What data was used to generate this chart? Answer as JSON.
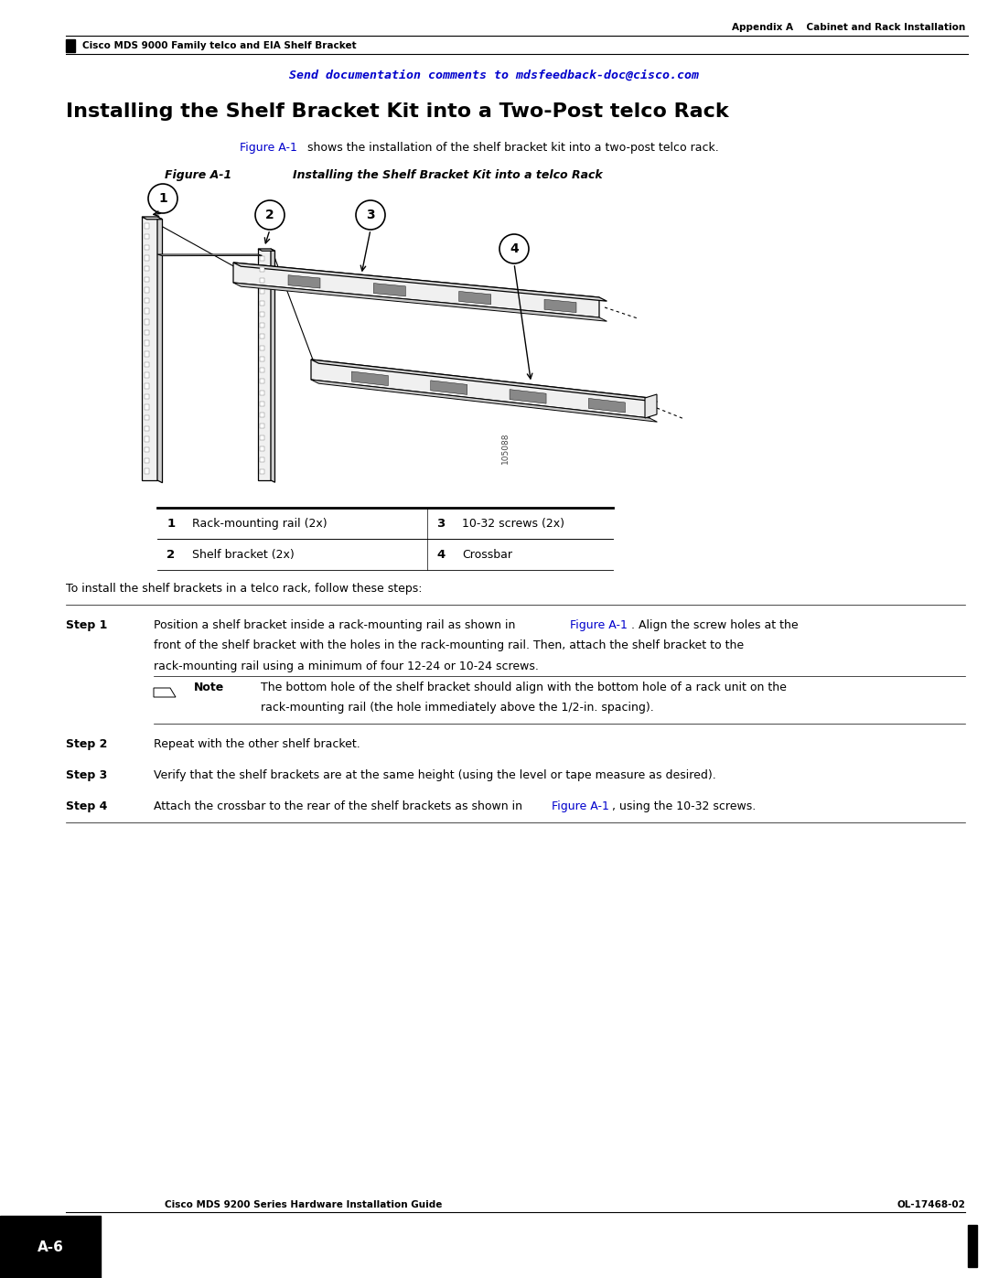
{
  "bg_color": "#ffffff",
  "page_width": 10.8,
  "page_height": 13.97,
  "header_right_text": "Appendix A    Cabinet and Rack Installation",
  "header_left_text": "Cisco MDS 9000 Family telco and EIA Shelf Bracket",
  "feedback_text": "Send documentation comments to mdsfeedback-doc@cisco.com",
  "feedback_color": "#0000cc",
  "main_title": "Installing the Shelf Bracket Kit into a Two-Post telco Rack",
  "figure_label": "Figure A-1",
  "figure_title": "Installing the Shelf Bracket Kit into a telco Rack",
  "link_color": "#0000cc",
  "table_items": [
    [
      "1",
      "Rack-mounting rail (2x)",
      "3",
      "10-32 screws (2x)"
    ],
    [
      "2",
      "Shelf bracket (2x)",
      "4",
      "Crossbar"
    ]
  ],
  "install_intro": "To install the shelf brackets in a telco rack, follow these steps:",
  "note_line1": "The bottom hole of the shelf bracket should align with the bottom hole of a rack unit on the",
  "note_line2": "rack-mounting rail (the hole immediately above the 1/2-in. spacing).",
  "footer_left": "Cisco MDS 9200 Series Hardware Installation Guide",
  "footer_page": "A-6",
  "footer_right": "OL-17468-02"
}
